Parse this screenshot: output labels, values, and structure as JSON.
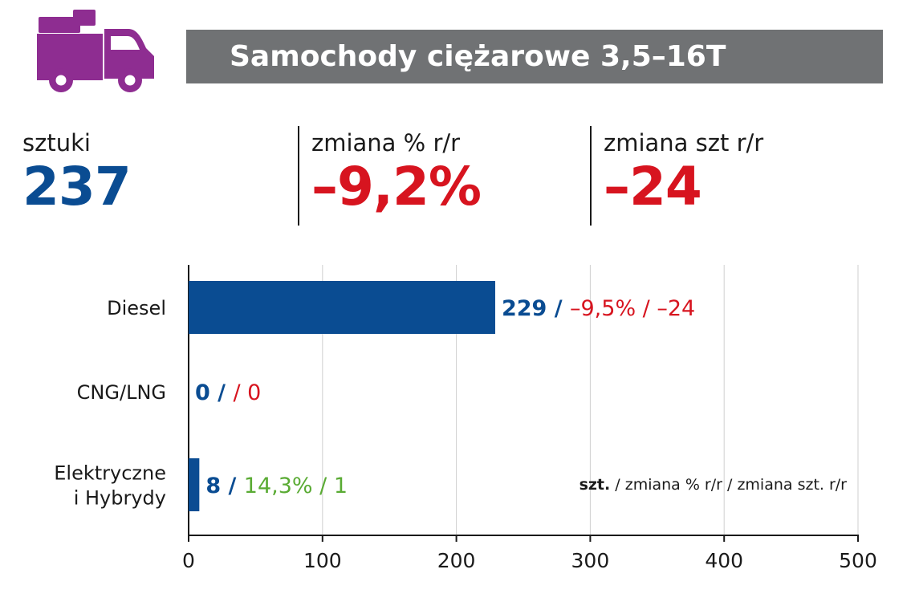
{
  "header": {
    "icon": "delivery-truck-icon",
    "icon_color": "#8e2d91",
    "title": "Samochody ciężarowe 3,5–16T",
    "bar_color": "#707274"
  },
  "stats": [
    {
      "label": "sztuki",
      "value": "237",
      "color": "#0a4c92"
    },
    {
      "label": "zmiana % r/r",
      "value": "–9,2%",
      "color": "#d7141f"
    },
    {
      "label": "zmiana szt r/r",
      "value": "–24",
      "color": "#d7141f"
    }
  ],
  "chart_data": {
    "type": "bar",
    "orientation": "horizontal",
    "categories": [
      [
        "Diesel"
      ],
      [
        "CNG/LNG"
      ],
      [
        "Elektryczne",
        "i Hybrydy"
      ]
    ],
    "values": [
      229,
      0,
      8
    ],
    "bar_color": "#0a4c92",
    "data_labels": [
      {
        "units": "229 /",
        "pct": "–9,5% /",
        "diff": "–24",
        "change_color": "#d7141f"
      },
      {
        "units": "0 /",
        "pct": "",
        "diff": "/ 0",
        "change_color": "#d7141f"
      },
      {
        "units": "8 /",
        "pct": "14,3% /",
        "diff": "1",
        "change_color": "#5aab34"
      }
    ],
    "x_ticks": [
      "0",
      "100",
      "200",
      "300",
      "400",
      "500"
    ],
    "xlim": [
      0,
      500
    ],
    "grid": "vertical",
    "legend": {
      "bold": "szt.",
      "rest": " / zmiana % r/r / zmiana szt. r/r",
      "position": "bottom-right"
    }
  }
}
